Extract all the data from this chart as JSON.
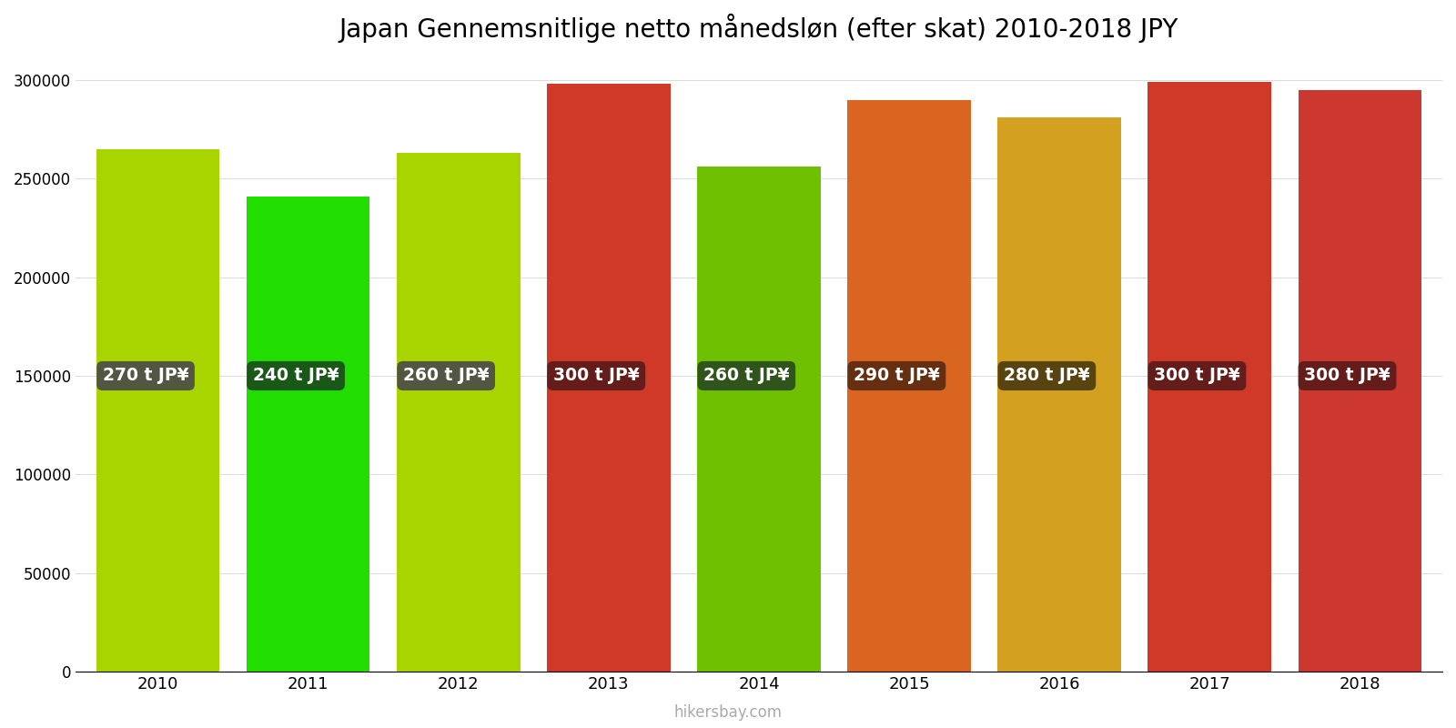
{
  "title": "Japan Gennemsnitlige netto månedsløn (efter skat) 2010-2018 JPY",
  "years": [
    2010,
    2011,
    2012,
    2013,
    2014,
    2015,
    2016,
    2017,
    2018
  ],
  "values": [
    265000,
    241000,
    263000,
    298000,
    256000,
    290000,
    281000,
    299000,
    295000
  ],
  "labels": [
    "270 t JP¥",
    "240 t JP¥",
    "260 t JP¥",
    "300 t JP¥",
    "260 t JP¥",
    "290 t JP¥",
    "280 t JP¥",
    "300 t JP¥",
    "300 t JP¥"
  ],
  "bar_colors": [
    "#a8d400",
    "#22dd00",
    "#a8d400",
    "#d03828",
    "#6ec000",
    "#d96520",
    "#d4a020",
    "#d03828",
    "#cc3830"
  ],
  "label_bg_colors": [
    "#4a4a4a",
    "#1a4a1a",
    "#4a4a4a",
    "#5a1a1a",
    "#2a4a20",
    "#5a2a10",
    "#4a3a10",
    "#5a1a1a",
    "#5a1a1a"
  ],
  "ylim": [
    0,
    310000
  ],
  "yticks": [
    0,
    50000,
    100000,
    150000,
    200000,
    250000,
    300000
  ],
  "title_fontsize": 20,
  "watermark": "hikersbay.com",
  "background_color": "#ffffff"
}
